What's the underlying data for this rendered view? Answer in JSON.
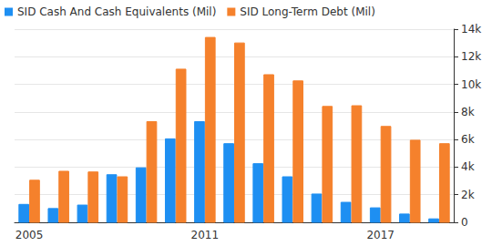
{
  "chart_data": {
    "type": "bar",
    "categories": [
      "2005",
      null,
      null,
      null,
      null,
      null,
      "2011",
      null,
      null,
      null,
      null,
      null,
      "2017",
      null,
      null
    ],
    "series": [
      {
        "name": "SID Cash And Cash Equivalents (Mil)",
        "color": "#1e8ff2",
        "values": [
          1300,
          1000,
          1250,
          3450,
          3950,
          6050,
          7300,
          5700,
          4250,
          3300,
          2050,
          1450,
          1050,
          600,
          250
        ]
      },
      {
        "name": "SID Long-Term Debt (Mil)",
        "color": "#f5812c",
        "values": [
          3050,
          3700,
          3650,
          3300,
          7300,
          11100,
          13400,
          13000,
          10700,
          10250,
          8400,
          8450,
          6950,
          5950,
          5700
        ]
      }
    ],
    "ylim": [
      0,
      14000
    ],
    "yticks": [
      0,
      {
        "value": 2000,
        "label": "2k"
      },
      {
        "value": 4000,
        "label": "4k"
      },
      {
        "value": 6000,
        "label": "6k"
      },
      {
        "value": 8000,
        "label": "8k"
      },
      {
        "value": 10000,
        "label": "10k"
      },
      {
        "value": 12000,
        "label": "12k"
      },
      {
        "value": 14000,
        "label": "14k"
      }
    ],
    "grid": true,
    "legend": "top-left"
  }
}
